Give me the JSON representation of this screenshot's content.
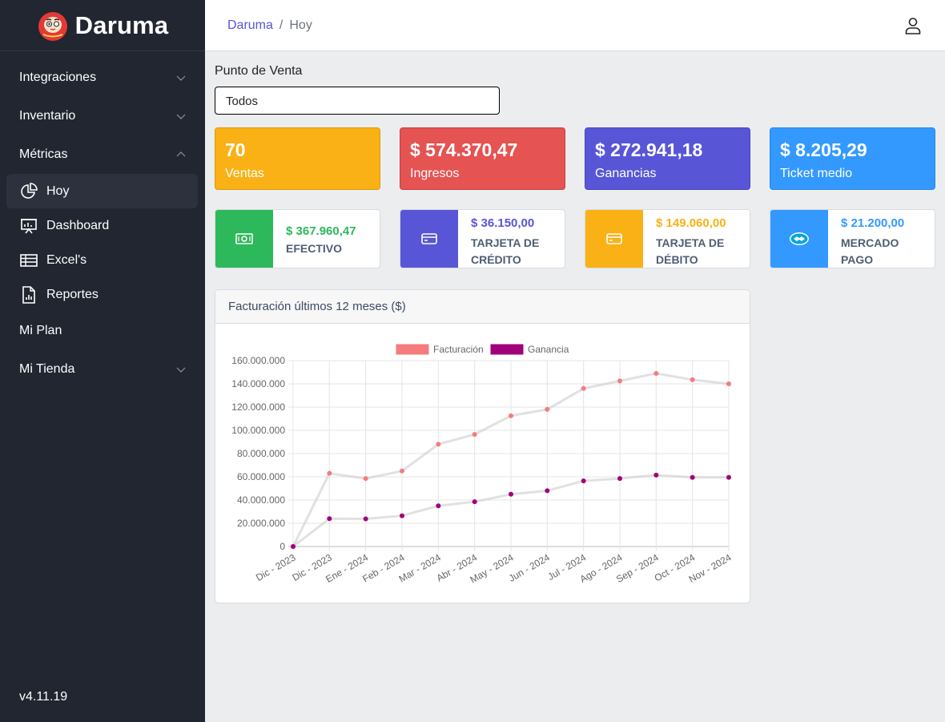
{
  "app": {
    "brand": "Daruma",
    "version": "v4.11.19"
  },
  "sidebar": {
    "items": [
      {
        "label": "Integraciones"
      },
      {
        "label": "Inventario"
      },
      {
        "label": "Métricas"
      },
      {
        "label": "Mi Plan"
      },
      {
        "label": "Mi Tienda"
      }
    ],
    "metricas_sub": [
      {
        "label": "Hoy",
        "icon": "pie-chart-icon"
      },
      {
        "label": "Dashboard",
        "icon": "presentation-chart-icon"
      },
      {
        "label": "Excel's",
        "icon": "table-icon"
      },
      {
        "label": "Reportes",
        "icon": "report-file-icon"
      }
    ]
  },
  "header": {
    "breadcrumb_root": "Daruma",
    "breadcrumb_current": "Hoy",
    "separator": "/"
  },
  "filter": {
    "label": "Punto de Venta",
    "selected": "Todos"
  },
  "kpis": [
    {
      "value": "70",
      "label": "Ventas"
    },
    {
      "value": "$ 574.370,47",
      "label": "Ingresos"
    },
    {
      "value": "$ 272.941,18",
      "label": "Ganancias"
    },
    {
      "value": "$ 8.205,29",
      "label": "Ticket medio"
    }
  ],
  "payments": [
    {
      "amount": "$ 367.960,47",
      "name_line1": "EFECTIVO",
      "name_line2": "",
      "icon": "cash-icon",
      "color": "#2eb85c"
    },
    {
      "amount": "$ 36.150,00",
      "name_line1": "TARJETA DE",
      "name_line2": "CRÉDITO",
      "icon": "credit-card-icon",
      "color": "#5856d6"
    },
    {
      "amount": "$ 149.060,00",
      "name_line1": "TARJETA DE",
      "name_line2": "DÉBITO",
      "icon": "debit-card-icon",
      "color": "#f9b115"
    },
    {
      "amount": "$ 21.200,00",
      "name_line1": "MERCADO",
      "name_line2": "PAGO",
      "icon": "handshake-icon",
      "color": "#3399ff"
    }
  ],
  "chart_card": {
    "title": "Facturación últimos 12 meses ($)"
  },
  "chart_data": {
    "type": "line",
    "categories": [
      "Dic - 2023",
      "Dic - 2023",
      "Ene - 2024",
      "Feb - 2024",
      "Mar - 2024",
      "Abr - 2024",
      "May - 2024",
      "Jun - 2024",
      "Jul - 2024",
      "Ago - 2024",
      "Sep - 2024",
      "Oct - 2024",
      "Nov - 2024"
    ],
    "series": [
      {
        "name": "Facturación",
        "color": "#f47c7c",
        "values": [
          0,
          63000000,
          58500000,
          65000000,
          88000000,
          96500000,
          112500000,
          118000000,
          136000000,
          142500000,
          149000000,
          143500000,
          140000000
        ]
      },
      {
        "name": "Ganancia",
        "color": "#a0007a",
        "values": [
          0,
          24000000,
          23800000,
          26500000,
          35000000,
          38500000,
          45000000,
          48000000,
          56500000,
          58500000,
          61500000,
          59500000,
          59500000
        ]
      }
    ],
    "ylim": [
      0,
      160000000
    ],
    "yticks": [
      "0",
      "20.000.000",
      "40.000.000",
      "60.000.000",
      "80.000.000",
      "100.000.000",
      "120.000.000",
      "140.000.000",
      "160.000.000"
    ],
    "grid": true,
    "legend": "top-center"
  }
}
